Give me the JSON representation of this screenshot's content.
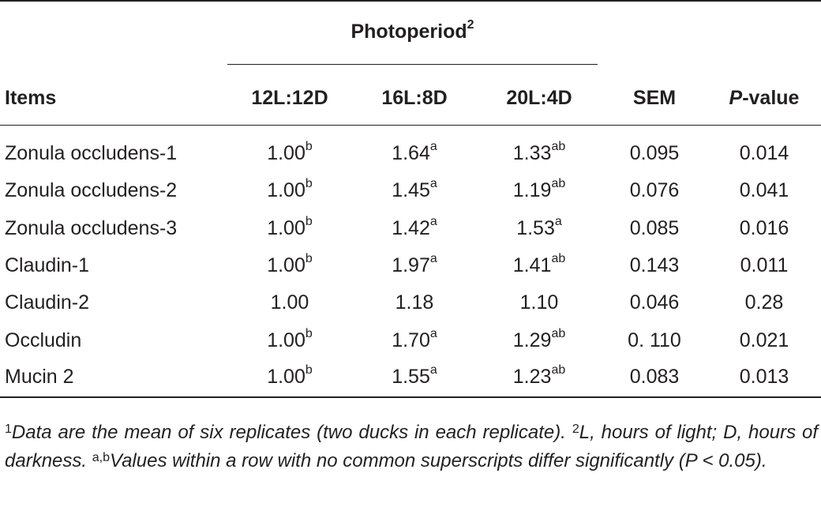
{
  "table": {
    "group_header": {
      "label": "Photoperiod",
      "sup": "2"
    },
    "columns": {
      "items": "Items",
      "c1": "12L:12D",
      "c2": "16L:8D",
      "c3": "20L:4D",
      "sem": "SEM",
      "p_italic": "P",
      "p_rest": "-value"
    },
    "rows": [
      {
        "name": "Zonula occludens-1",
        "v1": "1.00",
        "v1s": "b",
        "v2": "1.64",
        "v2s": "a",
        "v3": "1.33",
        "v3s": "ab",
        "sem": "0.095",
        "p": "0.014"
      },
      {
        "name": "Zonula occludens-2",
        "v1": "1.00",
        "v1s": "b",
        "v2": "1.45",
        "v2s": "a",
        "v3": "1.19",
        "v3s": "ab",
        "sem": "0.076",
        "p": "0.041"
      },
      {
        "name": "Zonula occludens-3",
        "v1": "1.00",
        "v1s": "b",
        "v2": "1.42",
        "v2s": "a",
        "v3": "1.53",
        "v3s": "a",
        "sem": "0.085",
        "p": "0.016"
      },
      {
        "name": "Claudin-1",
        "v1": "1.00",
        "v1s": "b",
        "v2": "1.97",
        "v2s": "a",
        "v3": "1.41",
        "v3s": "ab",
        "sem": "0.143",
        "p": "0.011"
      },
      {
        "name": "Claudin-2",
        "v1": "1.00",
        "v1s": "",
        "v2": "1.18",
        "v2s": "",
        "v3": "1.10",
        "v3s": "",
        "sem": "0.046",
        "p": "0.28"
      },
      {
        "name": "Occludin",
        "v1": "1.00",
        "v1s": "b",
        "v2": "1.70",
        "v2s": "a",
        "v3": "1.29",
        "v3s": "ab",
        "sem": "0. 110",
        "p": "0.021"
      },
      {
        "name": "Mucin 2",
        "v1": "1.00",
        "v1s": "b",
        "v2": "1.55",
        "v2s": "a",
        "v3": "1.23",
        "v3s": "ab",
        "sem": "0.083",
        "p": "0.013"
      }
    ]
  },
  "footnote": {
    "s1": "1",
    "t1": "Data are the mean of six replicates (two ducks in each replicate). ",
    "s2": "2",
    "t2": "L, hours of light; D, hours of darkness. ",
    "s3": "a,b",
    "t3": "Values within a row with no common superscripts differ significantly (P < 0.05)."
  }
}
